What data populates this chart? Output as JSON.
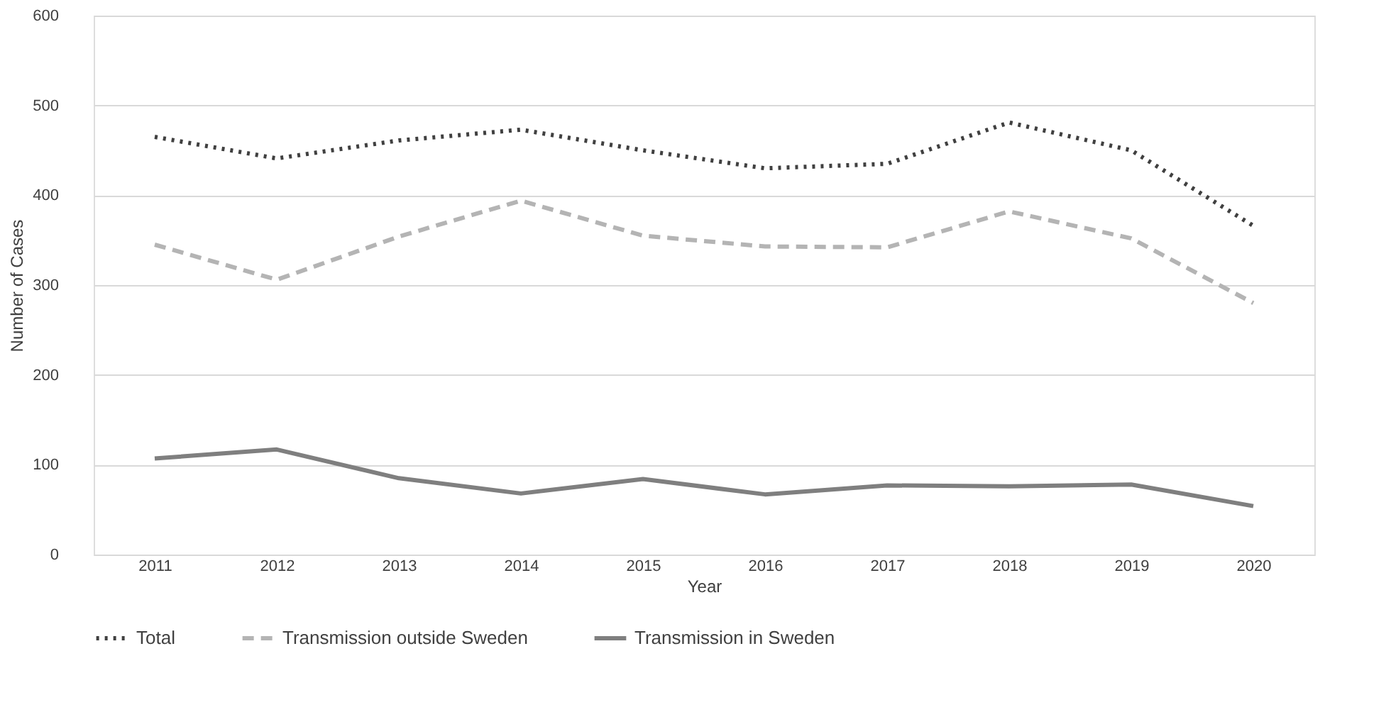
{
  "chart_data": {
    "type": "line",
    "xlabel": "Year",
    "ylabel": "Number of Cases",
    "categories": [
      "2011",
      "2012",
      "2013",
      "2014",
      "2015",
      "2016",
      "2017",
      "2018",
      "2019",
      "2020"
    ],
    "series": [
      {
        "name": "Total",
        "color": "#404040",
        "line_style": "dotted",
        "values": [
          465,
          441,
          461,
          473,
          450,
          430,
          435,
          481,
          450,
          366
        ]
      },
      {
        "name": "Transmission outside Sweden",
        "color": "#b4b4b4",
        "line_style": "dashed",
        "values": [
          345,
          306,
          354,
          394,
          355,
          343,
          342,
          382,
          352,
          280
        ]
      },
      {
        "name": "Transmission in Sweden",
        "color": "#7f7f7f",
        "line_style": "solid",
        "values": [
          107,
          117,
          85,
          68,
          84,
          67,
          77,
          76,
          78,
          54
        ]
      }
    ],
    "ylim": [
      0,
      600
    ],
    "yticks": [
      0,
      100,
      200,
      300,
      400,
      500,
      600
    ],
    "grid": "y",
    "legend": "bottom",
    "marker": "none"
  }
}
